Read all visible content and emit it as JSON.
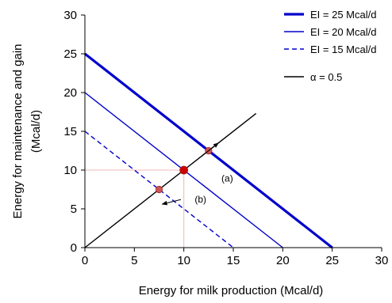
{
  "chart_data": {
    "type": "line",
    "xlabel": "Energy for milk production (Mcal/d)",
    "ylabel_lines": [
      "Energy for maintenance and gain",
      "(Mcal/d)"
    ],
    "xlim": [
      0,
      30
    ],
    "ylim": [
      0,
      30
    ],
    "xticks": [
      0,
      5,
      10,
      15,
      20,
      25,
      30
    ],
    "yticks": [
      0,
      5,
      10,
      15,
      20,
      25,
      30
    ],
    "grid": false,
    "legend_position": "top-right",
    "series": [
      {
        "name": "EI = 25 Mcal/d",
        "x": [
          0,
          25
        ],
        "y": [
          25,
          0
        ],
        "color": "#0000cc",
        "style": "solid",
        "weight": "thick"
      },
      {
        "name": "EI = 20 Mcal/d",
        "x": [
          0,
          20
        ],
        "y": [
          20,
          0
        ],
        "color": "#0000cc",
        "style": "solid",
        "weight": "normal"
      },
      {
        "name": "EI = 15 Mcal/d",
        "x": [
          0,
          15
        ],
        "y": [
          15,
          0
        ],
        "color": "#0000cc",
        "style": "dashed",
        "weight": "normal"
      },
      {
        "name": "α = 0.5",
        "x": [
          0,
          17.3
        ],
        "y": [
          0,
          17.3
        ],
        "color": "#000000",
        "style": "solid",
        "weight": "normal"
      }
    ],
    "points": [
      {
        "x": 10,
        "y": 10,
        "color": "#cc0000",
        "size": "large"
      },
      {
        "x": 12.5,
        "y": 12.5,
        "color": "#cc5555",
        "size": "small"
      },
      {
        "x": 7.5,
        "y": 7.5,
        "color": "#cc5555",
        "size": "small"
      }
    ],
    "reference_lines": [
      {
        "from": [
          0,
          10
        ],
        "to": [
          10,
          10
        ],
        "color": "#f2b8b8"
      },
      {
        "from": [
          10,
          0
        ],
        "to": [
          10,
          10
        ],
        "color": "#f2b8b8"
      }
    ],
    "arrows": [
      {
        "from": [
          10.8,
          10.8
        ],
        "to": [
          13.5,
          13.5
        ]
      },
      {
        "from": [
          9.7,
          6.2
        ],
        "to": [
          7.8,
          5.6
        ]
      }
    ],
    "annotations": [
      {
        "text": "(a)",
        "x": 13.8,
        "y": 8.5
      },
      {
        "text": "(b)",
        "x": 11.1,
        "y": 5.8
      }
    ]
  }
}
